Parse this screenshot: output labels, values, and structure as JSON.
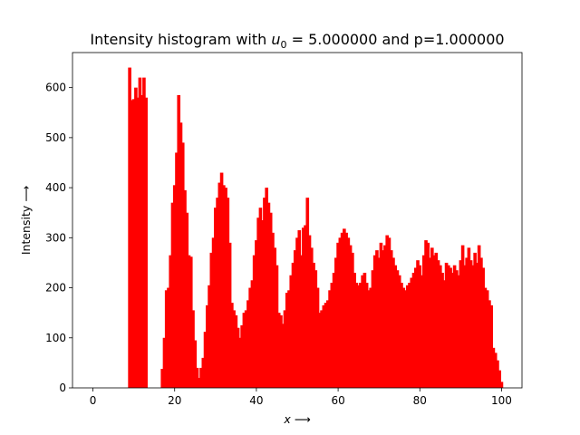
{
  "chart_data": {
    "type": "bar",
    "title": "Intensity histogram with $u_0 = 5.000000$ and p=1.000000",
    "title_display": {
      "prefix": "Intensity histogram with ",
      "var": "u",
      "sub": "0",
      "suffix": " = 5.000000 and p=1.000000"
    },
    "xlabel": {
      "var": "x",
      "arrow": " ⟶"
    },
    "ylabel": "Intensity  ⟶",
    "xlim": [
      -5,
      105
    ],
    "ylim": [
      0,
      670
    ],
    "x_ticks": [
      0,
      20,
      40,
      60,
      80,
      100
    ],
    "y_ticks": [
      0,
      100,
      200,
      300,
      400,
      500,
      600
    ],
    "bar_width": 0.8,
    "bar_color": "#ff0000",
    "grid": false,
    "legend": "none",
    "bars": [
      [
        9.0,
        640
      ],
      [
        9.5,
        575
      ],
      [
        10.0,
        577
      ],
      [
        10.5,
        600
      ],
      [
        11.0,
        580
      ],
      [
        11.5,
        620
      ],
      [
        12.0,
        585
      ],
      [
        12.5,
        620
      ],
      [
        13.0,
        580
      ],
      [
        17.0,
        38
      ],
      [
        17.5,
        100
      ],
      [
        18.0,
        195
      ],
      [
        18.5,
        200
      ],
      [
        19.0,
        265
      ],
      [
        19.5,
        370
      ],
      [
        20.0,
        405
      ],
      [
        20.5,
        470
      ],
      [
        21.0,
        585
      ],
      [
        21.5,
        530
      ],
      [
        22.0,
        490
      ],
      [
        22.5,
        395
      ],
      [
        23.0,
        350
      ],
      [
        23.5,
        265
      ],
      [
        24.0,
        262
      ],
      [
        24.5,
        155
      ],
      [
        25.0,
        95
      ],
      [
        25.5,
        40
      ],
      [
        26.0,
        20
      ],
      [
        26.5,
        40
      ],
      [
        27.0,
        60
      ],
      [
        27.5,
        112
      ],
      [
        28.0,
        165
      ],
      [
        28.5,
        205
      ],
      [
        29.0,
        270
      ],
      [
        29.5,
        300
      ],
      [
        30.0,
        360
      ],
      [
        30.5,
        380
      ],
      [
        31.0,
        410
      ],
      [
        31.5,
        430
      ],
      [
        32.0,
        405
      ],
      [
        32.5,
        400
      ],
      [
        33.0,
        380
      ],
      [
        33.5,
        290
      ],
      [
        34.0,
        170
      ],
      [
        34.5,
        155
      ],
      [
        35.0,
        145
      ],
      [
        35.5,
        120
      ],
      [
        36.0,
        100
      ],
      [
        36.5,
        125
      ],
      [
        37.0,
        150
      ],
      [
        37.5,
        155
      ],
      [
        38.0,
        175
      ],
      [
        38.5,
        200
      ],
      [
        39.0,
        215
      ],
      [
        39.5,
        265
      ],
      [
        40.0,
        295
      ],
      [
        40.5,
        340
      ],
      [
        41.0,
        360
      ],
      [
        41.5,
        335
      ],
      [
        42.0,
        380
      ],
      [
        42.5,
        400
      ],
      [
        43.0,
        370
      ],
      [
        43.5,
        350
      ],
      [
        44.0,
        310
      ],
      [
        44.5,
        280
      ],
      [
        45.0,
        245
      ],
      [
        45.5,
        150
      ],
      [
        46.0,
        145
      ],
      [
        46.5,
        128
      ],
      [
        47.0,
        155
      ],
      [
        47.5,
        190
      ],
      [
        48.0,
        195
      ],
      [
        48.5,
        225
      ],
      [
        49.0,
        250
      ],
      [
        49.5,
        275
      ],
      [
        50.0,
        300
      ],
      [
        50.5,
        315
      ],
      [
        51.0,
        265
      ],
      [
        51.5,
        320
      ],
      [
        52.0,
        325
      ],
      [
        52.5,
        380
      ],
      [
        53.0,
        305
      ],
      [
        53.5,
        280
      ],
      [
        54.0,
        250
      ],
      [
        54.5,
        235
      ],
      [
        55.0,
        200
      ],
      [
        55.5,
        150
      ],
      [
        56.0,
        155
      ],
      [
        56.5,
        165
      ],
      [
        57.0,
        170
      ],
      [
        57.5,
        175
      ],
      [
        58.0,
        195
      ],
      [
        58.5,
        210
      ],
      [
        59.0,
        230
      ],
      [
        59.5,
        260
      ],
      [
        60.0,
        290
      ],
      [
        60.5,
        300
      ],
      [
        61.0,
        310
      ],
      [
        61.5,
        318
      ],
      [
        62.0,
        310
      ],
      [
        62.5,
        300
      ],
      [
        63.0,
        285
      ],
      [
        63.5,
        270
      ],
      [
        64.0,
        230
      ],
      [
        64.5,
        210
      ],
      [
        65.0,
        205
      ],
      [
        65.5,
        210
      ],
      [
        66.0,
        225
      ],
      [
        66.5,
        230
      ],
      [
        67.0,
        210
      ],
      [
        67.5,
        195
      ],
      [
        68.0,
        200
      ],
      [
        68.5,
        235
      ],
      [
        69.0,
        265
      ],
      [
        69.5,
        275
      ],
      [
        70.0,
        260
      ],
      [
        70.5,
        290
      ],
      [
        71.0,
        275
      ],
      [
        71.5,
        285
      ],
      [
        72.0,
        305
      ],
      [
        72.5,
        300
      ],
      [
        73.0,
        275
      ],
      [
        73.5,
        260
      ],
      [
        74.0,
        245
      ],
      [
        74.5,
        235
      ],
      [
        75.0,
        225
      ],
      [
        75.5,
        210
      ],
      [
        76.0,
        200
      ],
      [
        76.5,
        195
      ],
      [
        77.0,
        205
      ],
      [
        77.5,
        210
      ],
      [
        78.0,
        220
      ],
      [
        78.5,
        230
      ],
      [
        79.0,
        240
      ],
      [
        79.5,
        255
      ],
      [
        80.0,
        245
      ],
      [
        80.5,
        225
      ],
      [
        81.0,
        265
      ],
      [
        81.5,
        295
      ],
      [
        82.0,
        290
      ],
      [
        82.5,
        260
      ],
      [
        83.0,
        280
      ],
      [
        83.5,
        265
      ],
      [
        84.0,
        270
      ],
      [
        84.5,
        255
      ],
      [
        85.0,
        245
      ],
      [
        85.5,
        230
      ],
      [
        86.0,
        215
      ],
      [
        86.5,
        250
      ],
      [
        87.0,
        245
      ],
      [
        87.5,
        240
      ],
      [
        88.0,
        230
      ],
      [
        88.5,
        245
      ],
      [
        89.0,
        235
      ],
      [
        89.5,
        225
      ],
      [
        90.0,
        255
      ],
      [
        90.5,
        285
      ],
      [
        91.0,
        245
      ],
      [
        91.5,
        260
      ],
      [
        92.0,
        280
      ],
      [
        92.5,
        255
      ],
      [
        93.0,
        245
      ],
      [
        93.5,
        270
      ],
      [
        94.0,
        250
      ],
      [
        94.5,
        285
      ],
      [
        95.0,
        260
      ],
      [
        95.5,
        240
      ],
      [
        96.0,
        200
      ],
      [
        96.5,
        195
      ],
      [
        97.0,
        175
      ],
      [
        97.5,
        165
      ],
      [
        98.0,
        80
      ],
      [
        98.5,
        70
      ],
      [
        99.0,
        55
      ],
      [
        99.5,
        35
      ],
      [
        100.0,
        12
      ]
    ]
  }
}
